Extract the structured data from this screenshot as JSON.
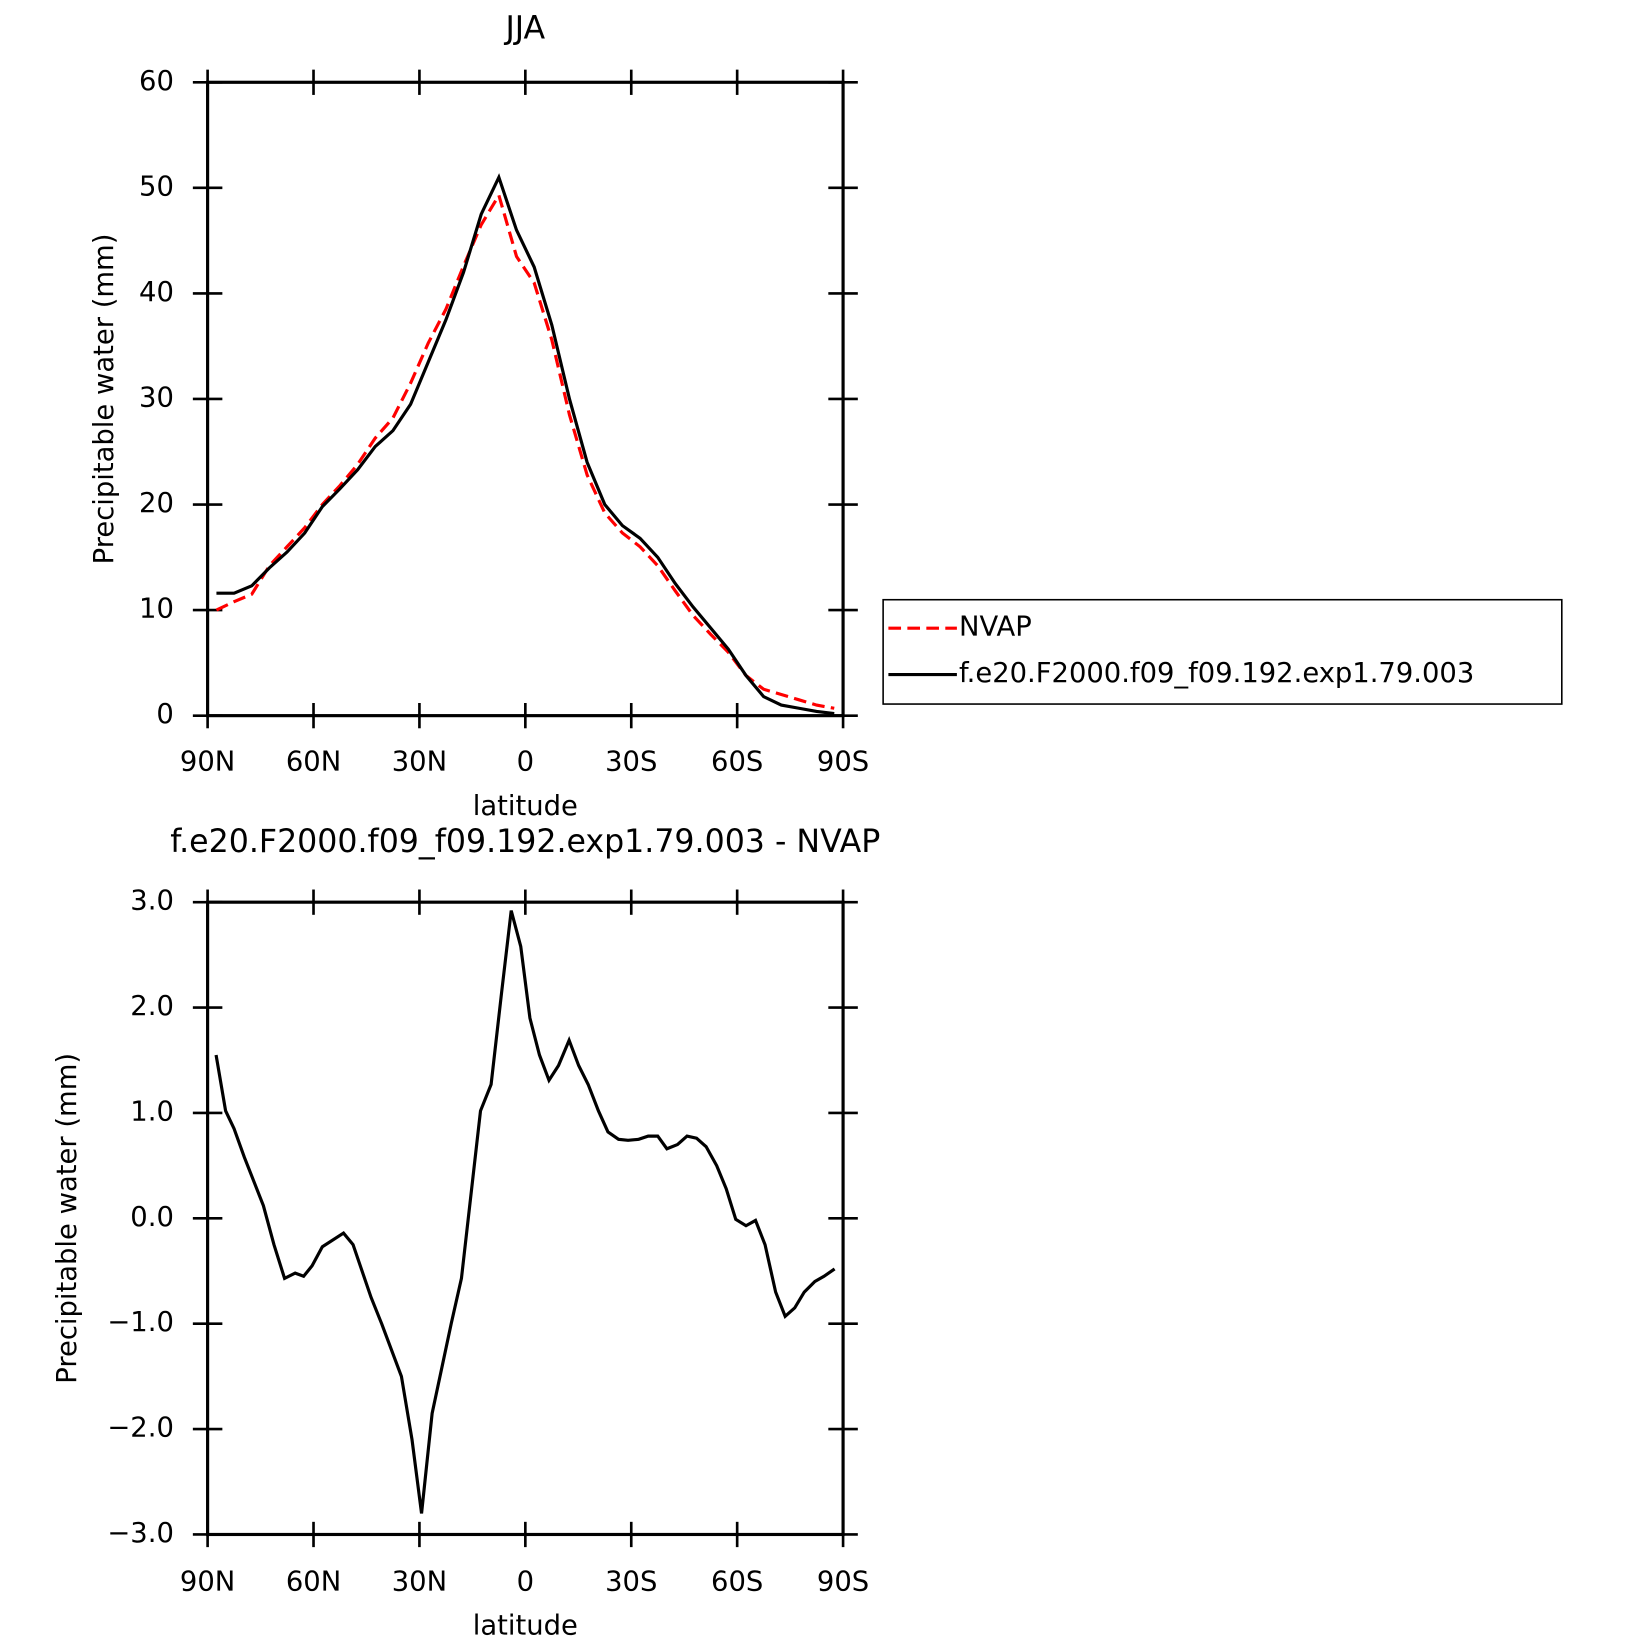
{
  "chart_data": [
    {
      "type": "line",
      "title": "JJA",
      "xlabel": "latitude",
      "ylabel": "Precipitable water (mm)",
      "x": [
        87.5,
        82.5,
        77.5,
        72.5,
        67.5,
        62.5,
        57.5,
        52.5,
        47.5,
        42.5,
        37.5,
        32.5,
        27.5,
        22.5,
        17.5,
        12.5,
        7.5,
        2.5,
        -2.5,
        -7.5,
        -12.5,
        -17.5,
        -22.5,
        -27.5,
        -32.5,
        -37.5,
        -42.5,
        -47.5,
        -52.5,
        -57.5,
        -62.5,
        -67.5,
        -72.5,
        -77.5,
        -82.5,
        -87.5
      ],
      "series": [
        {
          "name": "NVAP",
          "color": "#ff0000",
          "dashed": true,
          "values": [
            10.0,
            10.8,
            11.5,
            14.2,
            16.0,
            17.8,
            20.0,
            21.8,
            23.8,
            26.3,
            28.2,
            31.5,
            35.3,
            38.5,
            42.6,
            46.5,
            49.3,
            43.5,
            41.0,
            35.6,
            28.5,
            22.8,
            19.2,
            17.3,
            16.0,
            14.2,
            11.8,
            9.5,
            7.7,
            6.0,
            3.8,
            2.5,
            2.0,
            1.5,
            1.0,
            0.7
          ]
        },
        {
          "name": "f.e20.F2000.f09_f09.192.exp1.79.003",
          "color": "#000000",
          "dashed": false,
          "values": [
            11.6,
            11.6,
            12.3,
            14.0,
            15.5,
            17.3,
            19.8,
            21.5,
            23.3,
            25.5,
            27.0,
            29.5,
            33.5,
            37.5,
            42.0,
            47.5,
            51.0,
            46.0,
            42.5,
            37.0,
            30.0,
            24.0,
            20.0,
            18.0,
            16.8,
            15.0,
            12.5,
            10.3,
            8.3,
            6.3,
            3.8,
            1.8,
            1.0,
            0.7,
            0.4,
            0.2
          ]
        }
      ],
      "xlim": [
        90,
        -90
      ],
      "xticks": [
        {
          "value": 90,
          "label": "90N"
        },
        {
          "value": 60,
          "label": "60N"
        },
        {
          "value": 30,
          "label": "30N"
        },
        0,
        {
          "value": -30,
          "label": "30S"
        },
        {
          "value": -60,
          "label": "60S"
        },
        {
          "value": -90,
          "label": "90S"
        }
      ],
      "ylim": [
        0,
        60
      ],
      "yticks": [
        0,
        10,
        20,
        30,
        40,
        50,
        60
      ],
      "legend": "right"
    },
    {
      "type": "line",
      "title": "f.e20.F2000.f09_f09.192.exp1.79.003 - NVAP",
      "xlabel": "latitude",
      "ylabel": "Precipitable water (mm)",
      "x": [
        87.6,
        84.9,
        82.5,
        79.6,
        74.2,
        71.2,
        68.2,
        65.2,
        62.8,
        60.4,
        57.5,
        51.5,
        48.8,
        43.7,
        40.7,
        35.1,
        32.1,
        29.4,
        26.4,
        21.0,
        18.1,
        12.7,
        9.7,
        6.7,
        4.0,
        1.3,
        -1.3,
        -4.0,
        -6.7,
        -9.4,
        -12.4,
        -15.1,
        -17.8,
        -20.7,
        -23.4,
        -26.4,
        -29.1,
        -32.1,
        -34.8,
        -37.5,
        -40.1,
        -43.1,
        -45.8,
        -48.5,
        -51.2,
        -54.2,
        -56.9,
        -59.6,
        -62.5,
        -65.2,
        -67.9,
        -70.9,
        -73.6,
        -76.3,
        -79.0,
        -82.0,
        -84.6,
        -87.6
      ],
      "values": [
        1.55,
        1.02,
        0.85,
        0.58,
        0.12,
        -0.25,
        -0.57,
        -0.52,
        -0.55,
        -0.45,
        -0.27,
        -0.14,
        -0.25,
        -0.75,
        -1.0,
        -1.5,
        -2.1,
        -2.8,
        -1.85,
        -1.0,
        -0.57,
        1.02,
        1.27,
        2.15,
        2.92,
        2.58,
        1.9,
        1.55,
        1.31,
        1.45,
        1.69,
        1.45,
        1.27,
        1.02,
        0.82,
        0.75,
        0.74,
        0.75,
        0.78,
        0.78,
        0.66,
        0.7,
        0.78,
        0.76,
        0.68,
        0.5,
        0.28,
        -0.01,
        -0.07,
        -0.02,
        -0.25,
        -0.7,
        -0.93,
        -0.85,
        -0.7,
        -0.6,
        -0.55,
        -0.48
      ],
      "color": "#000000",
      "xlim": [
        90,
        -90
      ],
      "xticks": [
        {
          "value": 90,
          "label": "90N"
        },
        {
          "value": 60,
          "label": "60N"
        },
        {
          "value": 30,
          "label": "30N"
        },
        0,
        {
          "value": -30,
          "label": "30S"
        },
        {
          "value": -60,
          "label": "60S"
        },
        {
          "value": -90,
          "label": "90S"
        }
      ],
      "ylim": [
        -3,
        3
      ],
      "yticks": [
        {
          "value": -3,
          "label": "−3.0"
        },
        {
          "value": -2,
          "label": "−2.0"
        },
        {
          "value": -1,
          "label": "−1.0"
        },
        {
          "value": 0,
          "label": "0.0"
        },
        {
          "value": 1,
          "label": "1.0"
        },
        {
          "value": 2,
          "label": "2.0"
        },
        {
          "value": 3,
          "label": "3.0"
        }
      ]
    }
  ]
}
